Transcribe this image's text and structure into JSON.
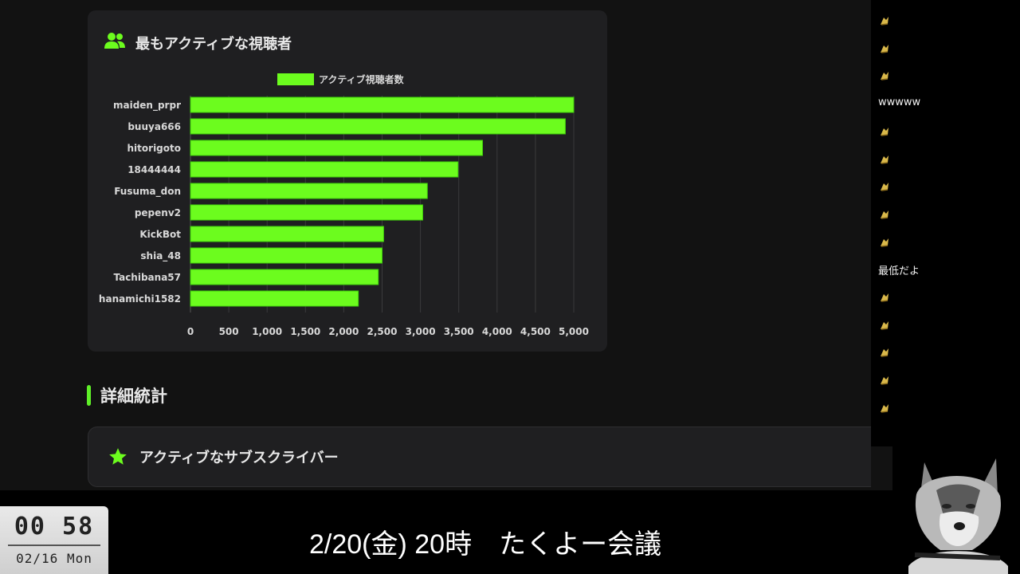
{
  "card": {
    "title": "最もアクティブな視聴者",
    "legend_label": "アクティブ視聴者数",
    "accent": "#6cfc1e"
  },
  "chart_data": {
    "type": "bar",
    "orientation": "horizontal",
    "categories": [
      "maiden_prpr",
      "buuya666",
      "hitorigoto",
      "18444444",
      "Fusuma_don",
      "pepenv2",
      "KickBot",
      "shia_48",
      "Tachibana57",
      "hanamichi1582"
    ],
    "series": [
      {
        "name": "アクティブ視聴者数",
        "values": [
          5000,
          4890,
          3810,
          3490,
          3090,
          3030,
          2520,
          2500,
          2450,
          2190
        ]
      }
    ],
    "xlim": [
      0,
      5000
    ],
    "xticks": [
      "0",
      "500",
      "1,000",
      "1,500",
      "2,000",
      "2,500",
      "3,000",
      "3,500",
      "4,000",
      "4,500",
      "5,000"
    ],
    "grid": true,
    "legend": "top"
  },
  "section": {
    "title": "詳細統計"
  },
  "subcard": {
    "title": "アクティブなサブスクライバー"
  },
  "chat": {
    "messages": [
      {
        "type": "emote"
      },
      {
        "type": "emote"
      },
      {
        "type": "emote"
      },
      {
        "type": "text",
        "text": "wwwww"
      },
      {
        "type": "emote"
      },
      {
        "type": "emote"
      },
      {
        "type": "emote"
      },
      {
        "type": "emote"
      },
      {
        "type": "emote"
      },
      {
        "type": "text",
        "text": "最低だよ"
      },
      {
        "type": "emote"
      },
      {
        "type": "emote"
      },
      {
        "type": "emote"
      },
      {
        "type": "emote"
      },
      {
        "type": "emote"
      }
    ]
  },
  "clock": {
    "time": "00 58",
    "date": "02/16 Mon"
  },
  "marquee": {
    "text": "2/20(金) 20時　たくよー会議"
  }
}
